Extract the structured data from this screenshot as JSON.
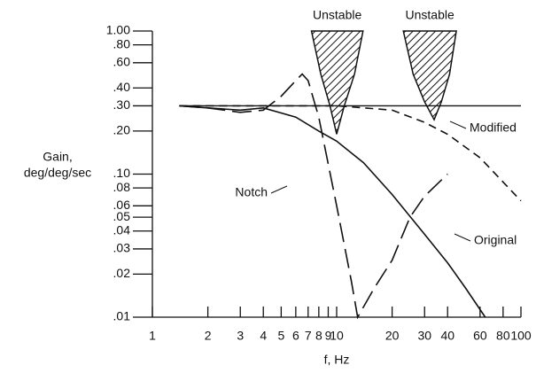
{
  "chart_data": {
    "type": "line",
    "xlabel": "f, Hz",
    "ylabel": [
      "Gain,",
      "deg/deg/sec"
    ],
    "xscale": "log",
    "yscale": "log",
    "xlim": [
      1,
      100
    ],
    "ylim": [
      0.01,
      1
    ],
    "xticks": [
      1,
      2,
      3,
      4,
      5,
      6,
      7,
      8,
      9,
      10,
      20,
      30,
      40,
      60,
      80,
      100
    ],
    "yticks": [
      {
        "value": 1,
        "label": "1.00"
      },
      {
        "value": 0.8,
        "label": ".80"
      },
      {
        "value": 0.6,
        "label": ".60"
      },
      {
        "value": 0.4,
        "label": ".40"
      },
      {
        "value": 0.3,
        "label": ".30"
      },
      {
        "value": 0.2,
        "label": ".20"
      },
      {
        "value": 0.1,
        "label": ".10"
      },
      {
        "value": 0.08,
        "label": ".08"
      },
      {
        "value": 0.06,
        "label": ".06"
      },
      {
        "value": 0.05,
        "label": ".05"
      },
      {
        "value": 0.04,
        "label": ".04"
      },
      {
        "value": 0.03,
        "label": ".03"
      },
      {
        "value": 0.02,
        "label": ".02"
      },
      {
        "value": 0.01,
        "label": ".01"
      }
    ],
    "reference_line": 0.3,
    "series": [
      {
        "name": "Original",
        "color": "#111111",
        "style": "solid",
        "x": [
          1.4,
          2,
          3,
          4,
          6,
          8,
          10,
          14,
          20,
          30,
          40,
          50,
          64
        ],
        "values": [
          0.3,
          0.29,
          0.28,
          0.29,
          0.25,
          0.2,
          0.17,
          0.12,
          0.072,
          0.038,
          0.024,
          0.016,
          0.01
        ]
      },
      {
        "name": "Notch",
        "color": "#111111",
        "style": "long-dash",
        "x": [
          1.4,
          2,
          3,
          4,
          5,
          6,
          6.5,
          7,
          8,
          10,
          12,
          13,
          16,
          20,
          25,
          30,
          40
        ],
        "values": [
          0.3,
          0.29,
          0.27,
          0.28,
          0.35,
          0.45,
          0.5,
          0.45,
          0.25,
          0.06,
          0.018,
          0.01,
          0.016,
          0.025,
          0.05,
          0.07,
          0.1
        ]
      },
      {
        "name": "Modified",
        "color": "#111111",
        "style": "short-dash",
        "x": [
          1.4,
          4,
          10,
          20,
          30,
          40,
          60,
          100
        ],
        "values": [
          0.3,
          0.3,
          0.3,
          0.28,
          0.23,
          0.19,
          0.13,
          0.065
        ]
      }
    ],
    "regions": [
      {
        "label": "Unstable",
        "x": [
          7.3,
          8.2,
          9.2,
          10,
          11,
          12.5,
          13.9
        ],
        "y": [
          1,
          0.5,
          0.3,
          0.19,
          0.3,
          0.5,
          1
        ]
      },
      {
        "label": "Unstable",
        "x": [
          23,
          26,
          30,
          33.8,
          37,
          41,
          44.6
        ],
        "y": [
          1,
          0.5,
          0.32,
          0.24,
          0.32,
          0.5,
          1
        ]
      }
    ]
  }
}
